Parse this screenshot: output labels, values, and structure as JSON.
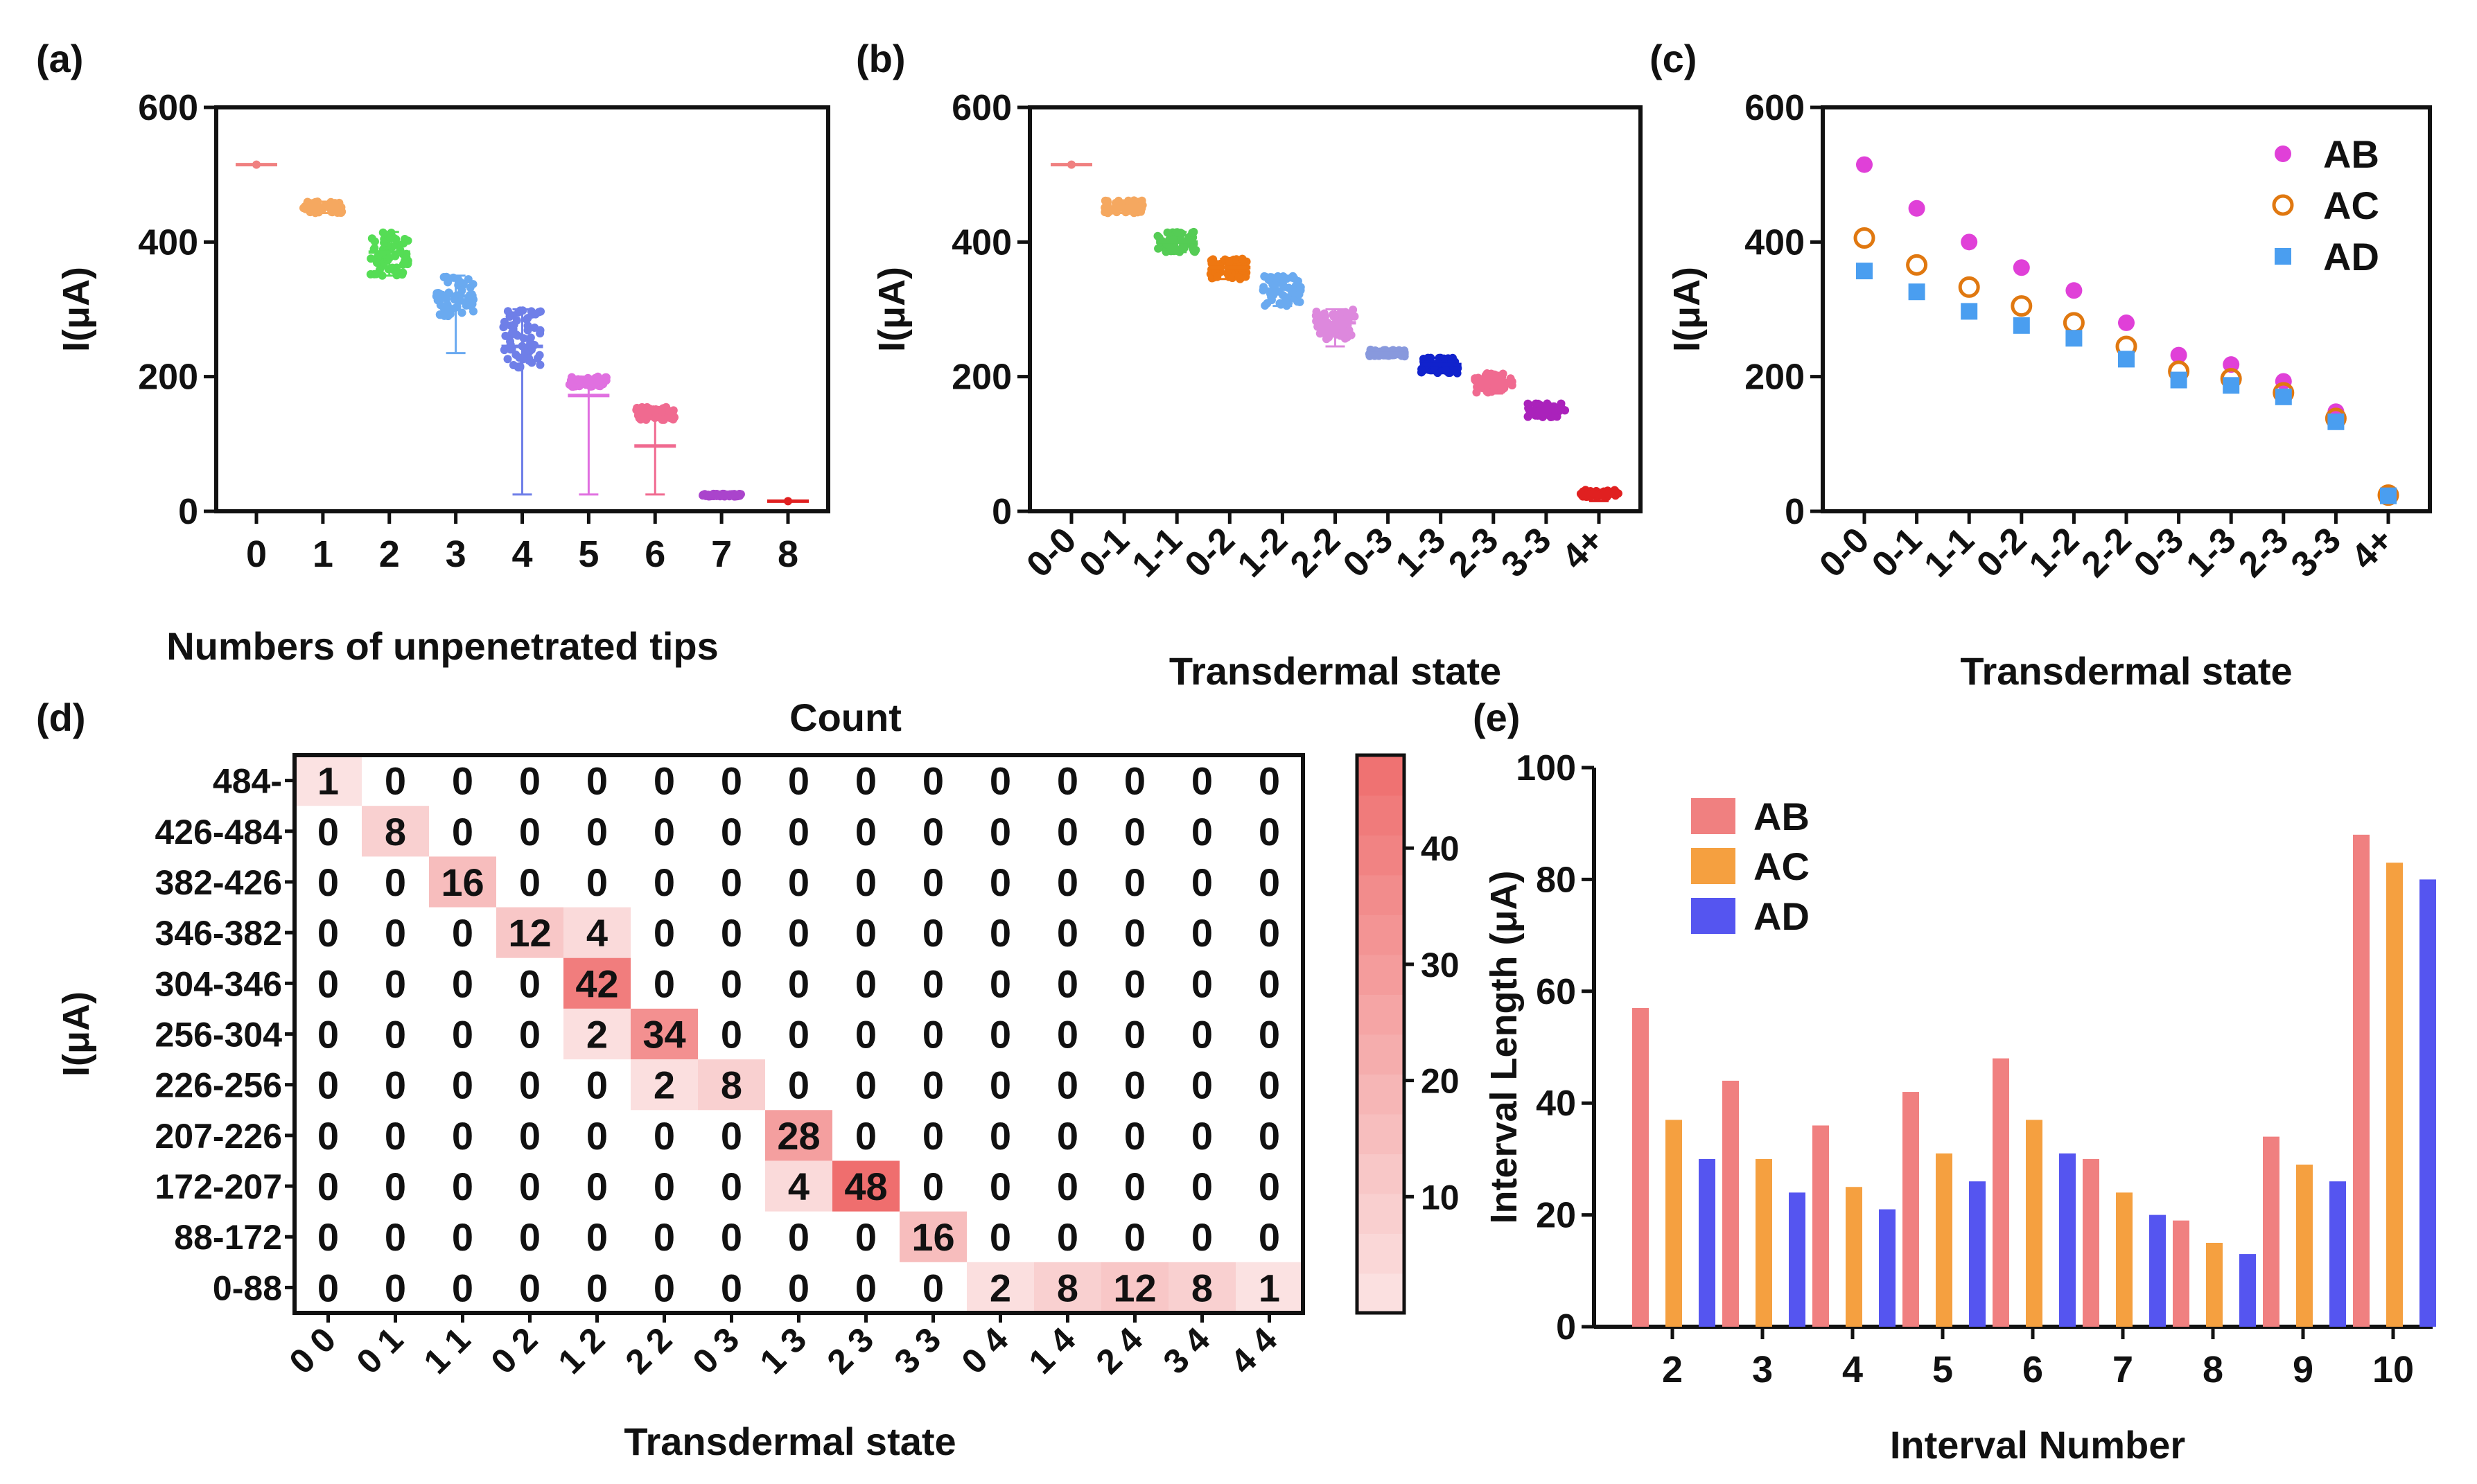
{
  "panels": {
    "a": {
      "label": "(a)",
      "type": "scatter-distribution",
      "title": "",
      "xlabel": "Numbers of unpenetrated tips",
      "ylabel": "I(μA)",
      "ylim": [
        0,
        600
      ],
      "yticks": [
        0,
        200,
        400,
        600
      ],
      "categories": [
        "0",
        "1",
        "2",
        "3",
        "4",
        "5",
        "6",
        "7",
        "8"
      ],
      "groups": [
        {
          "cat": "0",
          "mean": 515,
          "min": 515,
          "max": 515,
          "color": "#f08080",
          "spread_lo": 515,
          "spread_hi": 515
        },
        {
          "cat": "1",
          "mean": 452,
          "min": 443,
          "max": 460,
          "color": "#f5a860",
          "spread_lo": 443,
          "spread_hi": 460
        },
        {
          "cat": "2",
          "mean": 385,
          "min": 350,
          "max": 415,
          "color": "#55dd55",
          "spread_lo": 350,
          "spread_hi": 415
        },
        {
          "cat": "3",
          "mean": 320,
          "min": 235,
          "max": 350,
          "color": "#6aaaf0",
          "spread_lo": 290,
          "spread_hi": 350
        },
        {
          "cat": "4",
          "mean": 245,
          "min": 25,
          "max": 300,
          "color": "#6f7fe8",
          "spread_lo": 210,
          "spread_hi": 300
        },
        {
          "cat": "5",
          "mean": 172,
          "min": 25,
          "max": 200,
          "color": "#e070e0",
          "spread_lo": 185,
          "spread_hi": 200
        },
        {
          "cat": "6",
          "mean": 97,
          "min": 25,
          "max": 155,
          "color": "#f06a90",
          "spread_lo": 135,
          "spread_hi": 155
        },
        {
          "cat": "7",
          "mean": 24,
          "min": 22,
          "max": 26,
          "color": "#aa44cc",
          "spread_lo": 22,
          "spread_hi": 26
        },
        {
          "cat": "8",
          "mean": 15,
          "min": 15,
          "max": 15,
          "color": "#e02020",
          "spread_lo": 15,
          "spread_hi": 15
        }
      ]
    },
    "b": {
      "label": "(b)",
      "type": "scatter-distribution",
      "xlabel": "Transdermal state",
      "ylabel": "I(μA)",
      "ylim": [
        0,
        600
      ],
      "yticks": [
        0,
        200,
        400,
        600
      ],
      "categories": [
        "0-0",
        "0-1",
        "1-1",
        "0-2",
        "1-2",
        "2-2",
        "0-3",
        "1-3",
        "2-3",
        "3-3",
        "4+"
      ],
      "groups": [
        {
          "cat": "0-0",
          "mean": 515,
          "min": 515,
          "max": 515,
          "color": "#f08080",
          "spread_lo": 515,
          "spread_hi": 515
        },
        {
          "cat": "0-1",
          "mean": 452,
          "min": 443,
          "max": 462,
          "color": "#f5a860",
          "spread_lo": 443,
          "spread_hi": 462
        },
        {
          "cat": "1-1",
          "mean": 400,
          "min": 385,
          "max": 415,
          "color": "#55cc55",
          "spread_lo": 385,
          "spread_hi": 415
        },
        {
          "cat": "0-2",
          "mean": 362,
          "min": 345,
          "max": 375,
          "color": "#ee7711",
          "spread_lo": 345,
          "spread_hi": 375
        },
        {
          "cat": "1-2",
          "mean": 330,
          "min": 305,
          "max": 350,
          "color": "#6aaaf0",
          "spread_lo": 305,
          "spread_hi": 350
        },
        {
          "cat": "2-2",
          "mean": 280,
          "min": 245,
          "max": 300,
          "color": "#dd88dd",
          "spread_lo": 255,
          "spread_hi": 300
        },
        {
          "cat": "0-3",
          "mean": 235,
          "min": 230,
          "max": 240,
          "color": "#8899dd",
          "spread_lo": 230,
          "spread_hi": 240
        },
        {
          "cat": "1-3",
          "mean": 218,
          "min": 205,
          "max": 228,
          "color": "#1122cc",
          "spread_lo": 205,
          "spread_hi": 228
        },
        {
          "cat": "2-3",
          "mean": 192,
          "min": 175,
          "max": 205,
          "color": "#f06a90",
          "spread_lo": 175,
          "spread_hi": 205
        },
        {
          "cat": "3-3",
          "mean": 150,
          "min": 140,
          "max": 160,
          "color": "#aa22bb",
          "spread_lo": 140,
          "spread_hi": 160
        },
        {
          "cat": "4+",
          "mean": 25,
          "min": 15,
          "max": 32,
          "color": "#e02020",
          "spread_lo": 20,
          "spread_hi": 32
        }
      ]
    },
    "c": {
      "label": "(c)",
      "type": "scatter",
      "xlabel": "Transdermal state",
      "ylabel": "I(μA)",
      "ylim": [
        0,
        600
      ],
      "yticks": [
        0,
        200,
        400,
        600
      ],
      "categories": [
        "0-0",
        "0-1",
        "1-1",
        "0-2",
        "1-2",
        "2-2",
        "0-3",
        "1-3",
        "2-3",
        "3-3",
        "4+"
      ],
      "legend_position": "top-right",
      "series": [
        {
          "name": "AB",
          "marker": "circle-filled",
          "color": "#e040d8",
          "values": [
            515,
            450,
            400,
            362,
            328,
            280,
            232,
            218,
            193,
            148,
            25
          ]
        },
        {
          "name": "AC",
          "marker": "circle-open",
          "color": "#e07810",
          "values": [
            406,
            366,
            333,
            305,
            280,
            245,
            208,
            197,
            176,
            138,
            24
          ]
        },
        {
          "name": "AD",
          "marker": "square-filled",
          "color": "#4a9ef0",
          "values": [
            357,
            326,
            297,
            276,
            257,
            226,
            195,
            187,
            170,
            133,
            23
          ]
        }
      ]
    },
    "d": {
      "label": "(d)",
      "type": "heatmap",
      "title": "Count",
      "xlabel": "Transdermal state",
      "ylabel": "I(μA)",
      "columns": [
        "0 0",
        "0 1",
        "1 1",
        "0 2",
        "1 2",
        "2 2",
        "0 3",
        "1 3",
        "2 3",
        "3 3",
        "0 4",
        "1 4",
        "2 4",
        "3 4",
        "4 4"
      ],
      "rows": [
        "484-",
        "426-484",
        "382-426",
        "346-382",
        "304-346",
        "256-304",
        "226-256",
        "207-226",
        "172-207",
        "88-172",
        "0-88"
      ],
      "matrix": [
        [
          1,
          0,
          0,
          0,
          0,
          0,
          0,
          0,
          0,
          0,
          0,
          0,
          0,
          0,
          0
        ],
        [
          0,
          8,
          0,
          0,
          0,
          0,
          0,
          0,
          0,
          0,
          0,
          0,
          0,
          0,
          0
        ],
        [
          0,
          0,
          16,
          0,
          0,
          0,
          0,
          0,
          0,
          0,
          0,
          0,
          0,
          0,
          0
        ],
        [
          0,
          0,
          0,
          12,
          4,
          0,
          0,
          0,
          0,
          0,
          0,
          0,
          0,
          0,
          0
        ],
        [
          0,
          0,
          0,
          0,
          42,
          0,
          0,
          0,
          0,
          0,
          0,
          0,
          0,
          0,
          0
        ],
        [
          0,
          0,
          0,
          0,
          2,
          34,
          0,
          0,
          0,
          0,
          0,
          0,
          0,
          0,
          0
        ],
        [
          0,
          0,
          0,
          0,
          0,
          2,
          8,
          0,
          0,
          0,
          0,
          0,
          0,
          0,
          0
        ],
        [
          0,
          0,
          0,
          0,
          0,
          0,
          0,
          28,
          0,
          0,
          0,
          0,
          0,
          0,
          0
        ],
        [
          0,
          0,
          0,
          0,
          0,
          0,
          0,
          4,
          48,
          0,
          0,
          0,
          0,
          0,
          0
        ],
        [
          0,
          0,
          0,
          0,
          0,
          0,
          0,
          0,
          0,
          16,
          0,
          0,
          0,
          0,
          0
        ],
        [
          0,
          0,
          0,
          0,
          0,
          0,
          0,
          0,
          0,
          0,
          2,
          8,
          12,
          8,
          1
        ]
      ],
      "colorbar": {
        "min": 0,
        "max": 48,
        "ticks": [
          10,
          20,
          30,
          40
        ],
        "low_color": "#fbe4e4",
        "high_color": "#ef6e6e"
      }
    },
    "e": {
      "label": "(e)",
      "type": "bar",
      "xlabel": "Interval Number",
      "ylabel": "Interval Length (μA)",
      "ylim": [
        0,
        100
      ],
      "yticks": [
        0,
        20,
        40,
        60,
        80,
        100
      ],
      "categories": [
        "2",
        "3",
        "4",
        "5",
        "6",
        "7",
        "8",
        "9",
        "10"
      ],
      "legend_position": "top-left",
      "series": [
        {
          "name": "AB",
          "color": "#f08080",
          "values": [
            57,
            44,
            36,
            42,
            48,
            30,
            19,
            34,
            88
          ]
        },
        {
          "name": "AC",
          "color": "#f5a040",
          "values": [
            37,
            30,
            25,
            31,
            37,
            24,
            15,
            29,
            83
          ]
        },
        {
          "name": "AD",
          "color": "#5555f0",
          "values": [
            30,
            24,
            21,
            26,
            31,
            20,
            13,
            26,
            80
          ]
        }
      ]
    }
  },
  "chart_data": [
    {
      "panel": "a",
      "type": "scatter",
      "title": "",
      "xlabel": "Numbers of unpenetrated tips",
      "ylabel": "I(μA)",
      "categories": [
        "0",
        "1",
        "2",
        "3",
        "4",
        "5",
        "6",
        "7",
        "8"
      ],
      "values": [
        515,
        452,
        385,
        320,
        245,
        172,
        97,
        24,
        15
      ],
      "ylim": [
        0,
        600
      ]
    },
    {
      "panel": "b",
      "type": "scatter",
      "title": "",
      "xlabel": "Transdermal state",
      "ylabel": "I(μA)",
      "categories": [
        "0-0",
        "0-1",
        "1-1",
        "0-2",
        "1-2",
        "2-2",
        "0-3",
        "1-3",
        "2-3",
        "3-3",
        "4+"
      ],
      "values": [
        515,
        452,
        400,
        362,
        330,
        280,
        235,
        218,
        192,
        150,
        25
      ],
      "ylim": [
        0,
        600
      ]
    },
    {
      "panel": "c",
      "type": "scatter",
      "title": "",
      "xlabel": "Transdermal state",
      "ylabel": "I(μA)",
      "categories": [
        "0-0",
        "0-1",
        "1-1",
        "0-2",
        "1-2",
        "2-2",
        "0-3",
        "1-3",
        "2-3",
        "3-3",
        "4+"
      ],
      "series": [
        {
          "name": "AB",
          "values": [
            515,
            450,
            400,
            362,
            328,
            280,
            232,
            218,
            193,
            148,
            25
          ]
        },
        {
          "name": "AC",
          "values": [
            406,
            366,
            333,
            305,
            280,
            245,
            208,
            197,
            176,
            138,
            24
          ]
        },
        {
          "name": "AD",
          "values": [
            357,
            326,
            297,
            276,
            257,
            226,
            195,
            187,
            170,
            133,
            23
          ]
        }
      ],
      "ylim": [
        0,
        600
      ]
    },
    {
      "panel": "d",
      "type": "heatmap",
      "title": "Count",
      "xlabel": "Transdermal state",
      "ylabel": "I(μA)"
    },
    {
      "panel": "e",
      "type": "bar",
      "title": "",
      "xlabel": "Interval Number",
      "ylabel": "Interval Length (μA)",
      "categories": [
        "2",
        "3",
        "4",
        "5",
        "6",
        "7",
        "8",
        "9",
        "10"
      ],
      "series": [
        {
          "name": "AB",
          "values": [
            57,
            44,
            36,
            42,
            48,
            30,
            19,
            34,
            88
          ]
        },
        {
          "name": "AC",
          "values": [
            37,
            30,
            25,
            31,
            37,
            24,
            15,
            29,
            83
          ]
        },
        {
          "name": "AD",
          "values": [
            30,
            24,
            21,
            26,
            31,
            20,
            13,
            26,
            80
          ]
        }
      ],
      "ylim": [
        0,
        100
      ]
    }
  ]
}
